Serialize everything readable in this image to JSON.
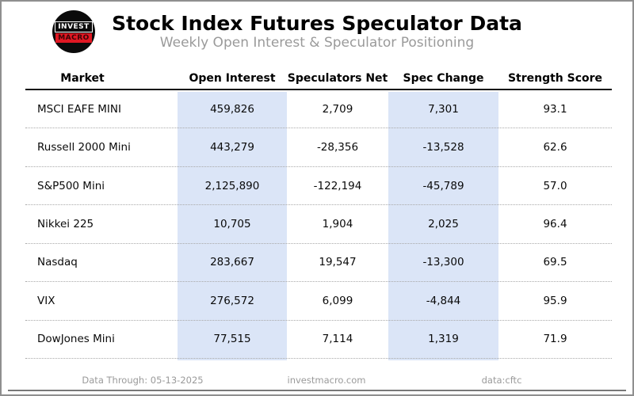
{
  "header": {
    "logo": {
      "line1": "INVEST",
      "line2": "MACRO"
    },
    "title": "Stock Index Futures Speculator Data",
    "subtitle": "Weekly Open Interest & Speculator Positioning"
  },
  "table": {
    "columns": [
      "Market",
      "Open Interest",
      "Speculators Net",
      "Spec Change",
      "Strength Score"
    ],
    "highlighted_columns": [
      "Open Interest",
      "Spec Change"
    ],
    "rows": [
      {
        "market": "MSCI EAFE MINI",
        "open_interest": "459,826",
        "speculators_net": "2,709",
        "spec_change": "7,301",
        "strength_score": "93.1"
      },
      {
        "market": "Russell 2000 Mini",
        "open_interest": "443,279",
        "speculators_net": "-28,356",
        "spec_change": "-13,528",
        "strength_score": "62.6"
      },
      {
        "market": "S&P500 Mini",
        "open_interest": "2,125,890",
        "speculators_net": "-122,194",
        "spec_change": "-45,789",
        "strength_score": "57.0"
      },
      {
        "market": "Nikkei 225",
        "open_interest": "10,705",
        "speculators_net": "1,904",
        "spec_change": "2,025",
        "strength_score": "96.4"
      },
      {
        "market": "Nasdaq",
        "open_interest": "283,667",
        "speculators_net": "19,547",
        "spec_change": "-13,300",
        "strength_score": "69.5"
      },
      {
        "market": "VIX",
        "open_interest": "276,572",
        "speculators_net": "6,099",
        "spec_change": "-4,844",
        "strength_score": "95.9"
      },
      {
        "market": "DowJones Mini",
        "open_interest": "77,515",
        "speculators_net": "7,114",
        "spec_change": "1,319",
        "strength_score": "71.9"
      }
    ]
  },
  "footer": {
    "data_through": "Data Through: 05-13-2025",
    "website": "investmacro.com",
    "source": "data:cftc"
  },
  "colors": {
    "highlight_band": "#dbe5f7",
    "logo_red": "#e01823",
    "subtitle_gray": "#9a9a9a",
    "frame_border": "#8f8f8f"
  },
  "chart_data": {
    "type": "table",
    "title": "Stock Index Futures Speculator Data",
    "subtitle": "Weekly Open Interest & Speculator Positioning",
    "columns": [
      "Market",
      "Open Interest",
      "Speculators Net",
      "Spec Change",
      "Strength Score"
    ],
    "rows": [
      [
        "MSCI EAFE MINI",
        459826,
        2709,
        7301,
        93.1
      ],
      [
        "Russell 2000 Mini",
        443279,
        -28356,
        -13528,
        62.6
      ],
      [
        "S&P500 Mini",
        2125890,
        -122194,
        -45789,
        57.0
      ],
      [
        "Nikkei 225",
        10705,
        1904,
        2025,
        96.4
      ],
      [
        "Nasdaq",
        283667,
        19547,
        -13300,
        69.5
      ],
      [
        "VIX",
        276572,
        6099,
        -4844,
        95.9
      ],
      [
        "DowJones Mini",
        77515,
        7114,
        1319,
        71.9
      ]
    ],
    "highlighted_columns": [
      "Open Interest",
      "Spec Change"
    ],
    "notes": [
      "Data Through: 05-13-2025",
      "investmacro.com",
      "data:cftc"
    ]
  }
}
